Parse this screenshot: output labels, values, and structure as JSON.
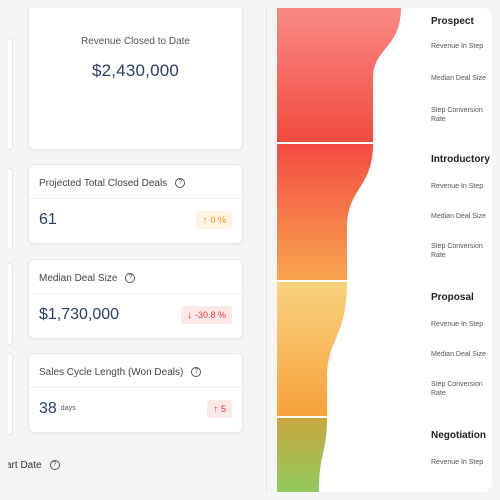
{
  "summary": {
    "revenue_label": "Revenue Closed to Date",
    "revenue_value": "$2,430,000"
  },
  "kpis": [
    {
      "label": "Projected Total Closed Deals",
      "value": "61",
      "unit": "",
      "change": "0 %",
      "direction": "up",
      "tone": "amber"
    },
    {
      "label": "Median Deal Size",
      "value": "$1,730,000",
      "unit": "",
      "change": "-30.8 %",
      "direction": "down",
      "tone": "red"
    },
    {
      "label": "Sales Cycle Length (Won Deals)",
      "value": "38",
      "unit": "days",
      "change": "5",
      "direction": "up",
      "tone": "red"
    }
  ],
  "bottom_label": "art Date",
  "funnel": {
    "stages": [
      {
        "title": "Prospect",
        "metrics": [
          "Revenue In Step",
          "Median Deal Size",
          "Step Conversion Rate"
        ]
      },
      {
        "title": "Introductory C",
        "metrics": [
          "Revenue In Step",
          "Median Deal Size",
          "Step Conversion Rate"
        ]
      },
      {
        "title": "Proposal",
        "metrics": [
          "Revenue In Step",
          "Median Deal Size",
          "Step Conversion Rate"
        ]
      },
      {
        "title": "Negotiation",
        "metrics": [
          "Revenue In Step"
        ]
      }
    ]
  },
  "colors": {
    "prospect": "#f44b43",
    "introductory": "#f7934c",
    "proposal": "#f8b14a",
    "negotiation": "#93c95d",
    "badge_amber": "#e0951a",
    "badge_red": "#e03a3a"
  },
  "icons": [
    "info-icon",
    "arrow-up-icon",
    "arrow-down-icon"
  ]
}
